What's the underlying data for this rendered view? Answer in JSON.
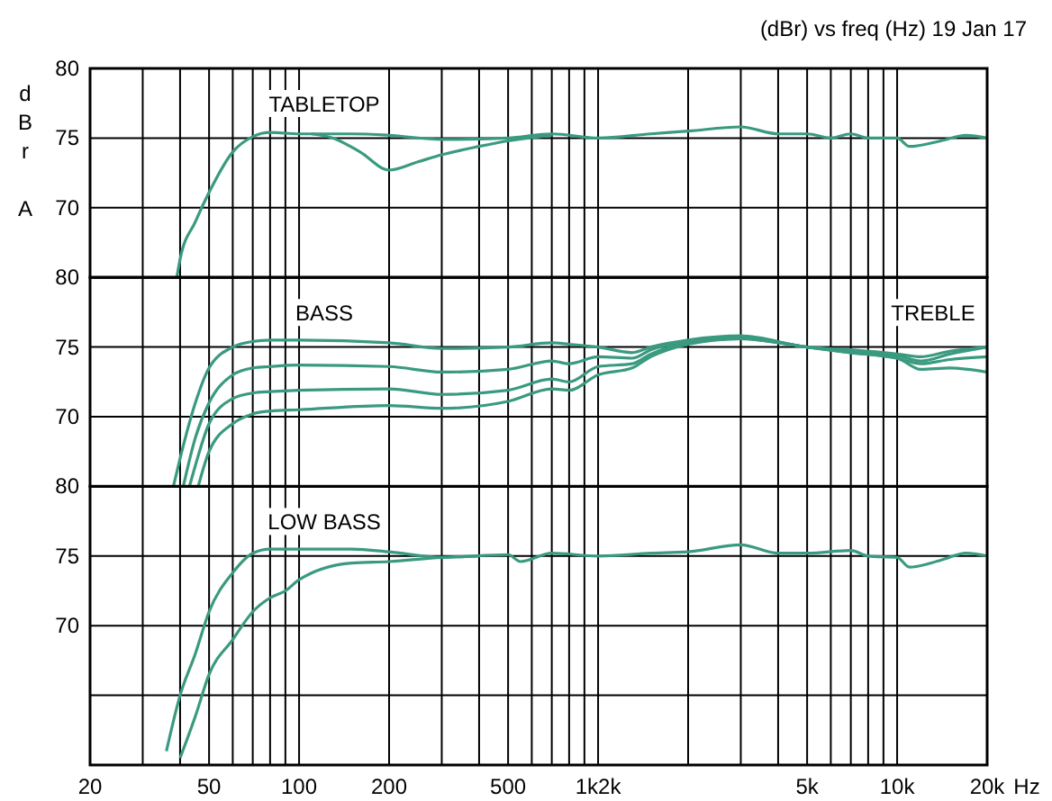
{
  "chart_data": [
    {
      "type": "line",
      "title": "(dBr) vs freq (Hz) 19 Jan 17",
      "ylabel": "dBr A",
      "log": "x",
      "grid": true,
      "tick_labels": "y",
      "xlim": [
        20,
        20000
      ],
      "xticks": [
        20,
        30,
        40,
        50,
        60,
        70,
        80,
        90,
        100,
        200,
        300,
        400,
        500,
        600,
        700,
        800,
        900,
        1000,
        2000,
        3000,
        4000,
        5000,
        6000,
        7000,
        8000,
        9000,
        10000,
        20000
      ],
      "ylim": [
        65,
        80
      ],
      "yticks": [
        80,
        75,
        70
      ],
      "annotations": [
        "TABLETOP"
      ],
      "series": [
        {
          "color": "#3a9a80",
          "x": [
            39,
            40,
            45,
            50,
            60,
            70,
            80,
            100,
            150,
            200,
            300,
            500,
            700,
            1000,
            1500,
            2000,
            3000,
            4000,
            5000,
            6000,
            7000,
            8000,
            10000,
            11000,
            14000,
            17000,
            20000
          ],
          "values": [
            65,
            66.3,
            69,
            71.1,
            74,
            75.1,
            75.4,
            75.3,
            75.3,
            75.2,
            74.9,
            75,
            75.3,
            75,
            75.3,
            75.5,
            75.8,
            75.3,
            75.3,
            75,
            75.3,
            75,
            75,
            74.4,
            74.8,
            75.2,
            75
          ]
        },
        {
          "color": "#3a9a80",
          "x": [
            110,
            130,
            160,
            200,
            250,
            300,
            400,
            500,
            700
          ],
          "values": [
            75.3,
            75,
            74,
            72.7,
            73.3,
            73.8,
            74.4,
            74.8,
            75.2
          ]
        }
      ]
    },
    {
      "type": "line",
      "log": "x",
      "grid": true,
      "tick_labels": "y",
      "xlim": [
        20,
        20000
      ],
      "xticks": [
        20,
        30,
        40,
        50,
        60,
        70,
        80,
        90,
        100,
        200,
        300,
        400,
        500,
        600,
        700,
        800,
        900,
        1000,
        2000,
        3000,
        4000,
        5000,
        6000,
        7000,
        8000,
        9000,
        10000,
        20000
      ],
      "ylim": [
        65,
        80
      ],
      "yticks": [
        80,
        75,
        70
      ],
      "annotations": [
        "BASS",
        "TREBLE"
      ],
      "series": [
        {
          "color": "#3a9a80",
          "x": [
            38,
            40,
            45,
            50,
            60,
            70,
            80,
            100,
            200,
            300,
            500,
            700,
            800,
            1000,
            1300,
            1500,
            2000,
            3000,
            5000,
            7000,
            10000,
            12000,
            15000,
            20000
          ],
          "values": [
            65,
            67,
            71,
            73.5,
            75,
            75.4,
            75.5,
            75.5,
            75.3,
            74.9,
            75,
            75.3,
            75.2,
            75,
            74.6,
            75,
            75.5,
            75.8,
            75,
            74.8,
            74.5,
            74.3,
            74.7,
            75
          ]
        },
        {
          "color": "#3a9a80",
          "x": [
            41,
            45,
            50,
            60,
            70,
            80,
            100,
            200,
            300,
            500,
            700,
            800,
            1000,
            1300,
            1500,
            2000,
            3000,
            5000,
            7000,
            10000,
            12000,
            15000,
            20000
          ],
          "values": [
            65,
            68.5,
            71,
            73,
            73.5,
            73.6,
            73.7,
            73.6,
            73.2,
            73.4,
            74,
            73.8,
            74.3,
            74.2,
            74.8,
            75.4,
            75.7,
            75,
            74.6,
            74.2,
            73.4,
            73.5,
            73.2
          ]
        },
        {
          "color": "#3a9a80",
          "x": [
            43,
            45,
            50,
            60,
            70,
            80,
            100,
            200,
            300,
            500,
            700,
            800,
            1000,
            1300,
            1500,
            2000,
            3000,
            5000,
            7000,
            10000,
            12000,
            15000,
            20000
          ],
          "values": [
            65,
            66.5,
            69.5,
            71.3,
            71.7,
            71.8,
            71.9,
            72,
            71.6,
            71.9,
            72.7,
            72.5,
            73.6,
            73.8,
            74.5,
            75.3,
            75.6,
            75,
            74.7,
            74.4,
            74,
            74.5,
            75
          ]
        },
        {
          "color": "#3a9a80",
          "x": [
            46,
            50,
            60,
            70,
            80,
            100,
            200,
            300,
            500,
            700,
            800,
            1000,
            1300,
            1500,
            2000,
            3000,
            5000,
            7000,
            10000,
            12000,
            15000,
            20000
          ],
          "values": [
            65,
            67.5,
            69.5,
            70.2,
            70.4,
            70.5,
            70.8,
            70.6,
            71.1,
            72,
            71.9,
            73,
            73.5,
            74.3,
            75.2,
            75.6,
            75,
            74.6,
            74.2,
            73.8,
            74.1,
            74.3
          ]
        }
      ]
    },
    {
      "type": "line",
      "xlabel": "Hz",
      "log": "x",
      "grid": true,
      "xlim": [
        20,
        20000
      ],
      "xticks": [
        20,
        {
          "value": 30,
          "label": null
        },
        {
          "value": 40,
          "label": null
        },
        50,
        {
          "value": 60,
          "label": null
        },
        {
          "value": 70,
          "label": null
        },
        {
          "value": 80,
          "label": null
        },
        {
          "value": 90,
          "label": null
        },
        100,
        200,
        {
          "value": 300,
          "label": null
        },
        {
          "value": 400,
          "label": null
        },
        500,
        {
          "value": 600,
          "label": null
        },
        {
          "value": 700,
          "label": null
        },
        {
          "value": 800,
          "label": null
        },
        {
          "value": 900,
          "label": null
        },
        {
          "value": 1000,
          "label": "1k2k"
        },
        {
          "value": 2000,
          "label": null
        },
        {
          "value": 3000,
          "label": null
        },
        {
          "value": 4000,
          "label": null
        },
        {
          "value": 5000,
          "label": "5k"
        },
        {
          "value": 6000,
          "label": null
        },
        {
          "value": 7000,
          "label": null
        },
        {
          "value": 8000,
          "label": null
        },
        {
          "value": 9000,
          "label": null
        },
        {
          "value": 10000,
          "label": "10k"
        },
        {
          "value": 20000,
          "label": "20k"
        }
      ],
      "ylim": [
        60,
        80
      ],
      "yticks": [
        80,
        75,
        70,
        {
          "value": 65,
          "label": null
        }
      ],
      "annotations": [
        "LOW BASS"
      ],
      "series": [
        {
          "color": "#3a9a80",
          "x": [
            36,
            40,
            45,
            50,
            60,
            70,
            80,
            100,
            150,
            200,
            300,
            500,
            550,
            700,
            1000,
            1500,
            2000,
            3000,
            4000,
            5000,
            7000,
            8000,
            10000,
            11000,
            14000,
            17000,
            20000
          ],
          "values": [
            61,
            65,
            68,
            71,
            73.8,
            75.2,
            75.5,
            75.5,
            75.5,
            75.3,
            74.9,
            75.1,
            74.6,
            75.2,
            75,
            75.2,
            75.3,
            75.8,
            75.2,
            75.2,
            75.4,
            75,
            74.9,
            74.2,
            74.7,
            75.2,
            75
          ]
        },
        {
          "color": "#3a9a80",
          "x": [
            40,
            45,
            50,
            60,
            70,
            80,
            90,
            100,
            150,
            200,
            300,
            400
          ],
          "values": [
            60.5,
            63.5,
            66.5,
            69,
            71,
            72,
            72.5,
            73.3,
            74.5,
            74.6,
            74.9,
            75
          ]
        }
      ]
    }
  ]
}
